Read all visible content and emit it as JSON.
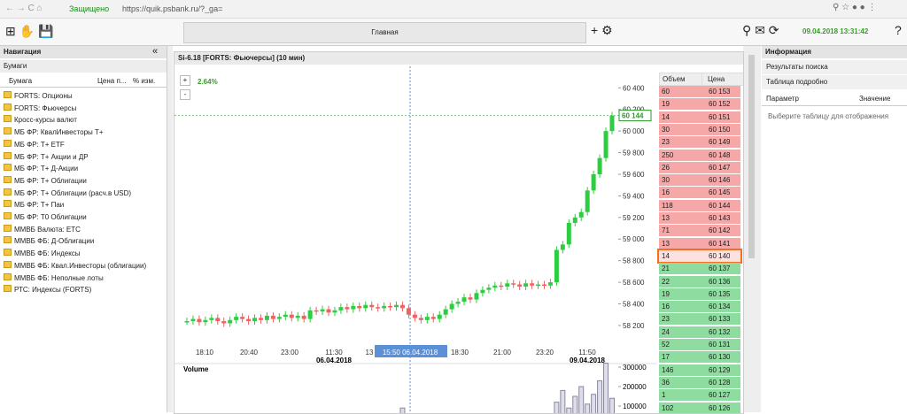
{
  "browser": {
    "secure": "Защищено",
    "url": "https://quik.psbank.ru/?_ga="
  },
  "toolbar": {
    "tab": "Главная",
    "datetime": "09.04.2018 13:31:42",
    "help": "?"
  },
  "navigation": {
    "title": "Навигация",
    "collapse": "«",
    "section": "Бумаги",
    "columns": [
      "Бумага",
      "Цена п...",
      "% изм."
    ],
    "items": [
      "FORTS: Опционы",
      "FORTS: Фьючерсы",
      "Кросс-курсы валют",
      "МБ ФР: КвалИнвесторы Т+",
      "МБ ФР: Т+ ETF",
      "МБ ФР: Т+ Акции и ДР",
      "МБ ФР: Т+ Д-Акции",
      "МБ ФР: Т+ Облигации",
      "МБ ФР: Т+ Облигации (расч.в USD)",
      "МБ ФР: Т+ Паи",
      "МБ ФР: Т0 Облигации",
      "ММВБ Валюта: ETC",
      "ММВБ ФБ: Д-Облигации",
      "ММВБ ФБ: Индексы",
      "ММВБ ФБ: Квал.Инвесторы (облигации)",
      "ММВБ ФБ: Неполные лоты",
      "РТС: Индексы (FORTS)"
    ]
  },
  "chart_panel": {
    "title": "Si-6.18 [FORTS: Фьючерсы] (10 мин)",
    "zoom_in": "+",
    "zoom_out": "-",
    "change": "2.64%",
    "chart": {
      "type": "candlestick",
      "closes": [
        58240,
        58260,
        58230,
        58250,
        58270,
        58240,
        58220,
        58250,
        58280,
        58260,
        58240,
        58270,
        58250,
        58290,
        58260,
        58280,
        58300,
        58270,
        58290,
        58260,
        58340,
        58330,
        58350,
        58320,
        58340,
        58370,
        58350,
        58380,
        58360,
        58390,
        58370,
        58360,
        58380,
        58370,
        58390,
        58360,
        58300,
        58270,
        58250,
        58280,
        58260,
        58300,
        58350,
        58400,
        58420,
        58460,
        58440,
        58500,
        58530,
        58550,
        58570,
        58560,
        58590,
        58580,
        58560,
        58590,
        58570,
        58580,
        58570,
        58600,
        58900,
        58950,
        59150,
        59200,
        59250,
        59450,
        59600,
        59750,
        60000,
        60144
      ],
      "volumes": [
        20000,
        15000,
        18000,
        22000,
        16000,
        14000,
        20000,
        25000,
        18000,
        16000,
        19000,
        21000,
        17000,
        24000,
        20000,
        18000,
        26000,
        22000,
        19000,
        23000,
        40000,
        30000,
        25000,
        28000,
        22000,
        26000,
        30000,
        24000,
        27000,
        25000,
        28000,
        30000,
        26000,
        24000,
        35000,
        90000,
        50000,
        40000,
        35000,
        30000,
        28000,
        32000,
        45000,
        38000,
        36000,
        40000,
        34000,
        42000,
        38000,
        36000,
        30000,
        28000,
        32000,
        30000,
        26000,
        28000,
        30000,
        32000,
        29000,
        60000,
        120000,
        180000,
        90000,
        150000,
        200000,
        110000,
        160000,
        230000,
        320000,
        140000
      ],
      "ylim": [
        57970,
        60550
      ],
      "yticks": [
        {
          "value": 60400,
          "label": "60 400"
        },
        {
          "value": 60200,
          "label": "60 200"
        },
        {
          "value": 60000,
          "label": "60 000"
        },
        {
          "value": 59800,
          "label": "59 800"
        },
        {
          "value": 59600,
          "label": "59 600"
        },
        {
          "value": 59400,
          "label": "59 400"
        },
        {
          "value": 59200,
          "label": "59 200"
        },
        {
          "value": 59000,
          "label": "59 000"
        },
        {
          "value": 58800,
          "label": "58 800"
        },
        {
          "value": 58600,
          "label": "58 600"
        },
        {
          "value": 58400,
          "label": "58 400"
        },
        {
          "value": 58200,
          "label": "58 200"
        }
      ],
      "last_price": {
        "value": 60144,
        "label": "60 144"
      },
      "xlabels": [
        "18:10",
        "20:40",
        "23:00",
        "11:30",
        "13",
        "15:50 06.04.2018",
        "18:30",
        "21:00",
        "23:20",
        "11:50"
      ],
      "dates": [
        "06.04.2018",
        "09.04.2018"
      ],
      "volume_title": "Volume",
      "volume_ylim": [
        0,
        300000
      ],
      "volume_ticks": [
        300000,
        200000,
        100000
      ],
      "up_color": "#2ecc40",
      "down_color": "#f06262"
    },
    "order_book": {
      "columns": [
        "Объем",
        "Цена"
      ],
      "selected_ask": 13,
      "asks": [
        [
          "60",
          "60 153"
        ],
        [
          "19",
          "60 152"
        ],
        [
          "14",
          "60 151"
        ],
        [
          "30",
          "60 150"
        ],
        [
          "23",
          "60 149"
        ],
        [
          "250",
          "60 148"
        ],
        [
          "26",
          "60 147"
        ],
        [
          "30",
          "60 146"
        ],
        [
          "16",
          "60 145"
        ],
        [
          "118",
          "60 144"
        ],
        [
          "13",
          "60 143"
        ],
        [
          "71",
          "60 142"
        ],
        [
          "13",
          "60 141"
        ],
        [
          "14",
          "60 140"
        ]
      ],
      "bids": [
        [
          "21",
          "60 137"
        ],
        [
          "22",
          "60 136"
        ],
        [
          "19",
          "60 135"
        ],
        [
          "16",
          "60 134"
        ],
        [
          "23",
          "60 133"
        ],
        [
          "24",
          "60 132"
        ],
        [
          "52",
          "60 131"
        ],
        [
          "17",
          "60 130"
        ],
        [
          "146",
          "60 129"
        ],
        [
          "36",
          "60 128"
        ],
        [
          "1",
          "60 127"
        ],
        [
          "102",
          "60 126"
        ]
      ]
    }
  },
  "info": {
    "title": "Информация",
    "search": "Результаты поиска",
    "detail": "Таблица подробно",
    "columns": [
      "Параметр",
      "Значение"
    ],
    "hint": "Выберите таблицу для отображения"
  }
}
